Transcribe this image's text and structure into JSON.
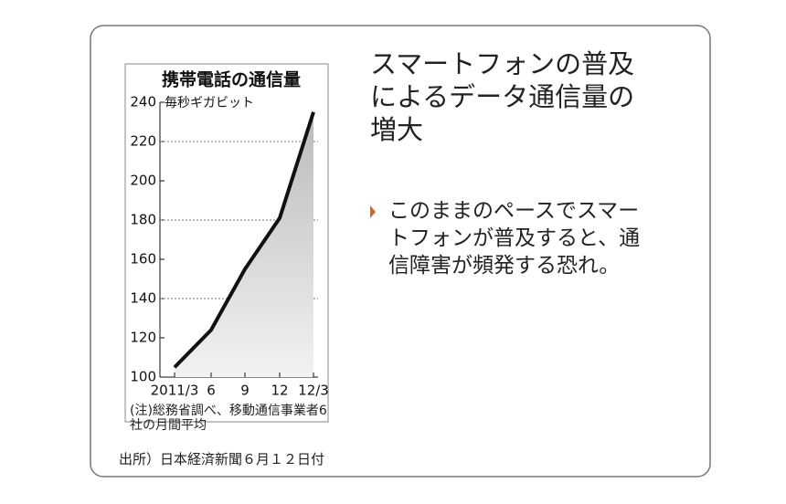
{
  "slide": {
    "heading": "スマートフォンの普及によるデータ通信量の増大",
    "bullet": "このままのペースでスマートフォンが普及すると、通信障害が頻発する恐れ。",
    "source": "出所）日本経済新聞６月１２日付"
  },
  "chart_data": {
    "type": "line",
    "title": "携帯電話の通信量",
    "unit_label": "毎秒ギガビット",
    "note": "(注)総務省調べ、移動通信事業者6社の月間平均",
    "categories": [
      "2011/3",
      "6",
      "9",
      "12",
      "12/3"
    ],
    "values": [
      105,
      124,
      155,
      181,
      235
    ],
    "color": "#111111",
    "ylim": [
      100,
      240
    ],
    "yticks": [
      100,
      120,
      140,
      160,
      180,
      200,
      220,
      240
    ],
    "grid": true
  }
}
